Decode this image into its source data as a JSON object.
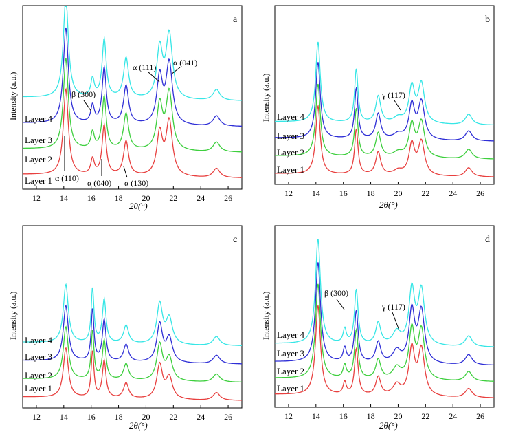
{
  "chart_data": [
    {
      "type": "line",
      "panel_label": "a",
      "xlabel": "2θ(°)",
      "ylabel": "Intensity (a.u.)",
      "xlim": [
        11,
        27
      ],
      "xticks": [
        12,
        14,
        16,
        18,
        20,
        22,
        24,
        26
      ],
      "series": [
        {
          "name": "Layer 1",
          "color": "#e8403f",
          "baseline": 0.06
        },
        {
          "name": "Layer 2",
          "color": "#3ecf3e",
          "baseline": 0.2
        },
        {
          "name": "Layer 3",
          "color": "#2f2fd6",
          "baseline": 0.34
        },
        {
          "name": "Layer 4",
          "color": "#37e6e6",
          "baseline": 0.48
        }
      ],
      "peaks": [
        [
          14.15,
          0.55,
          0.22
        ],
        [
          16.1,
          0.1,
          0.15
        ],
        [
          16.95,
          0.32,
          0.18
        ],
        [
          18.55,
          0.22,
          0.22
        ],
        [
          21.0,
          0.27,
          0.25
        ],
        [
          21.7,
          0.35,
          0.28
        ],
        [
          25.15,
          0.06,
          0.3
        ]
      ],
      "annotations": [
        "α (110)",
        "α (040)",
        "α (130)",
        "β (300)",
        "α (111)",
        "α (041)"
      ]
    },
    {
      "type": "line",
      "panel_label": "b",
      "xlabel": "2θ(°)",
      "ylabel": "Intensity (a.u.)",
      "xlim": [
        11,
        27
      ],
      "xticks": [
        12,
        14,
        16,
        18,
        20,
        22,
        24,
        26
      ],
      "series": [
        {
          "name": "Layer 1",
          "color": "#e8403f",
          "baseline": 0.04
        },
        {
          "name": "Layer 2",
          "color": "#3ecf3e",
          "baseline": 0.14
        },
        {
          "name": "Layer 3",
          "color": "#2f2fd6",
          "baseline": 0.24
        },
        {
          "name": "Layer 4",
          "color": "#37e6e6",
          "baseline": 0.33
        }
      ],
      "peaks": [
        [
          14.15,
          0.45,
          0.2
        ],
        [
          16.95,
          0.3,
          0.15
        ],
        [
          18.55,
          0.15,
          0.22
        ],
        [
          20.0,
          0.03,
          0.4
        ],
        [
          21.0,
          0.2,
          0.25
        ],
        [
          21.7,
          0.22,
          0.28
        ],
        [
          25.15,
          0.06,
          0.3
        ]
      ],
      "annotations": [
        "γ (117)"
      ]
    },
    {
      "type": "line",
      "panel_label": "c",
      "xlabel": "2θ(°)",
      "ylabel": "Intensity (a.u.)",
      "xlim": [
        11,
        27
      ],
      "xticks": [
        12,
        14,
        16,
        18,
        20,
        22,
        24,
        26
      ],
      "series": [
        {
          "name": "Layer 1",
          "color": "#e8403f",
          "baseline": 0.04
        },
        {
          "name": "Layer 2",
          "color": "#3ecf3e",
          "baseline": 0.14
        },
        {
          "name": "Layer 3",
          "color": "#2f2fd6",
          "baseline": 0.24
        },
        {
          "name": "Layer 4",
          "color": "#37e6e6",
          "baseline": 0.34
        }
      ],
      "peaks": [
        [
          14.15,
          0.32,
          0.22
        ],
        [
          16.1,
          0.3,
          0.12
        ],
        [
          16.95,
          0.24,
          0.16
        ],
        [
          18.55,
          0.1,
          0.22
        ],
        [
          21.0,
          0.22,
          0.25
        ],
        [
          21.7,
          0.14,
          0.28
        ],
        [
          25.15,
          0.05,
          0.3
        ]
      ],
      "annotations": []
    },
    {
      "type": "line",
      "panel_label": "d",
      "xlabel": "2θ(°)",
      "ylabel": "Intensity (a.u.)",
      "xlim": [
        11,
        27
      ],
      "xticks": [
        12,
        14,
        16,
        18,
        20,
        22,
        24,
        26
      ],
      "series": [
        {
          "name": "Layer 1",
          "color": "#e8403f",
          "baseline": 0.05
        },
        {
          "name": "Layer 2",
          "color": "#3ecf3e",
          "baseline": 0.14
        },
        {
          "name": "Layer 3",
          "color": "#2f2fd6",
          "baseline": 0.23
        },
        {
          "name": "Layer 4",
          "color": "#37e6e6",
          "baseline": 0.33
        }
      ],
      "peaks": [
        [
          14.15,
          0.58,
          0.22
        ],
        [
          16.1,
          0.08,
          0.14
        ],
        [
          16.95,
          0.3,
          0.16
        ],
        [
          18.55,
          0.12,
          0.22
        ],
        [
          19.9,
          0.07,
          0.35
        ],
        [
          21.0,
          0.3,
          0.25
        ],
        [
          21.7,
          0.3,
          0.28
        ],
        [
          25.15,
          0.06,
          0.3
        ]
      ],
      "annotations": [
        "β (300)",
        "γ (117)"
      ]
    }
  ]
}
